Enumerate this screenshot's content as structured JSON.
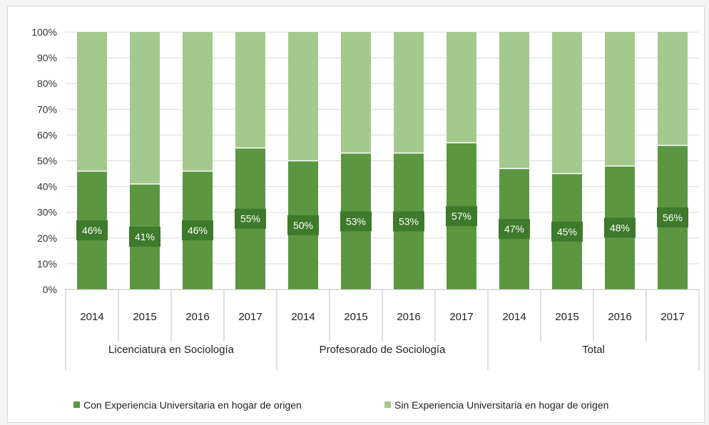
{
  "chart_data": {
    "type": "bar",
    "stacked": true,
    "percent_stacked": true,
    "groups": [
      {
        "name": "Licenciatura en Sociología",
        "years": [
          "2014",
          "2015",
          "2016",
          "2017"
        ]
      },
      {
        "name": "Profesorado de Sociología",
        "years": [
          "2014",
          "2015",
          "2016",
          "2017"
        ]
      },
      {
        "name": "Total",
        "years": [
          "2014",
          "2015",
          "2016",
          "2017"
        ]
      }
    ],
    "series": [
      {
        "name": "Con Experiencia Universitaria en hogar de origen",
        "color": "#5b9640",
        "values": [
          46,
          41,
          46,
          55,
          50,
          53,
          53,
          57,
          47,
          45,
          48,
          56
        ],
        "labels": [
          "46%",
          "41%",
          "46%",
          "55%",
          "50%",
          "53%",
          "53%",
          "57%",
          "47%",
          "45%",
          "48%",
          "56%"
        ]
      },
      {
        "name": "Sin Experiencia Universitaria en hogar de origen",
        "color": "#a3c98c",
        "values": [
          54,
          59,
          54,
          45,
          50,
          47,
          47,
          43,
          53,
          55,
          52,
          44
        ]
      }
    ],
    "yticks": [
      "0%",
      "10%",
      "20%",
      "30%",
      "40%",
      "50%",
      "60%",
      "70%",
      "80%",
      "90%",
      "100%"
    ],
    "ylim": [
      0,
      100
    ],
    "grid": true,
    "legend": "bottom-left",
    "label_box_color": "#3d7a2b"
  }
}
